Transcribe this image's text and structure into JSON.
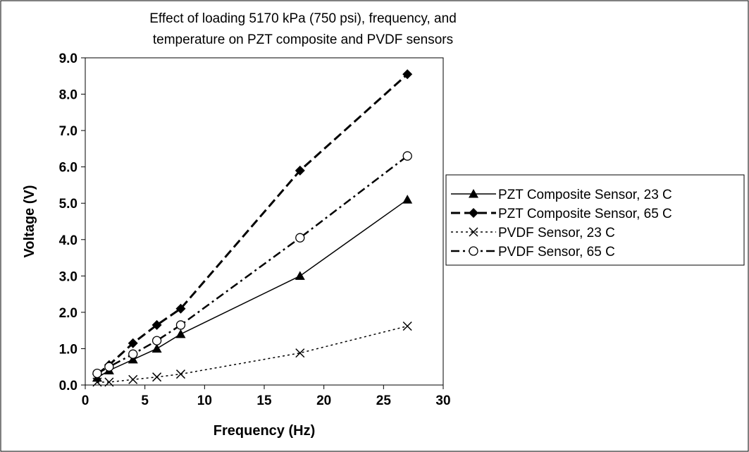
{
  "chart_data": {
    "type": "line",
    "title_lines": [
      "Effect of loading 5170 kPa (750 psi), frequency, and",
      "temperature on PZT composite and PVDF sensors"
    ],
    "xlabel": "Frequency (Hz)",
    "ylabel": "Voltage (V)",
    "xlim": [
      0,
      30
    ],
    "ylim": [
      0,
      9
    ],
    "x_ticks": [
      0,
      5,
      10,
      15,
      20,
      25,
      30
    ],
    "y_ticks": [
      0,
      1,
      2,
      3,
      4,
      5,
      6,
      7,
      8,
      9
    ],
    "x_tick_labels": [
      "0",
      "5",
      "10",
      "15",
      "20",
      "25",
      "30"
    ],
    "y_tick_labels": [
      "0.0",
      "1.0",
      "2.0",
      "3.0",
      "4.0",
      "5.0",
      "6.0",
      "7.0",
      "8.0",
      "9.0"
    ],
    "grid": false,
    "legend_position": "right",
    "series": [
      {
        "name": "PZT Composite Sensor, 23 C",
        "marker": "triangle",
        "line_style": "solid",
        "color": "#000000",
        "x": [
          1,
          2,
          4,
          6,
          8,
          18,
          27
        ],
        "y": [
          0.2,
          0.4,
          0.7,
          1.0,
          1.4,
          3.0,
          5.1
        ]
      },
      {
        "name": "PZT Composite Sensor, 65 C",
        "marker": "diamond",
        "line_style": "dashed",
        "color": "#000000",
        "x": [
          1,
          2,
          4,
          6,
          8,
          18,
          27
        ],
        "y": [
          0.3,
          0.55,
          1.15,
          1.65,
          2.1,
          5.9,
          8.55
        ]
      },
      {
        "name": "PVDF Sensor, 23 C",
        "marker": "x",
        "line_style": "dotted",
        "color": "#000000",
        "x": [
          1,
          2,
          4,
          6,
          8,
          18,
          27
        ],
        "y": [
          0.08,
          0.08,
          0.15,
          0.22,
          0.3,
          0.88,
          1.62
        ]
      },
      {
        "name": "PVDF Sensor, 65 C",
        "marker": "circle",
        "line_style": "dashdot",
        "color": "#000000",
        "x": [
          1,
          2,
          4,
          6,
          8,
          18,
          27
        ],
        "y": [
          0.32,
          0.5,
          0.85,
          1.22,
          1.65,
          4.05,
          6.3
        ]
      }
    ]
  }
}
